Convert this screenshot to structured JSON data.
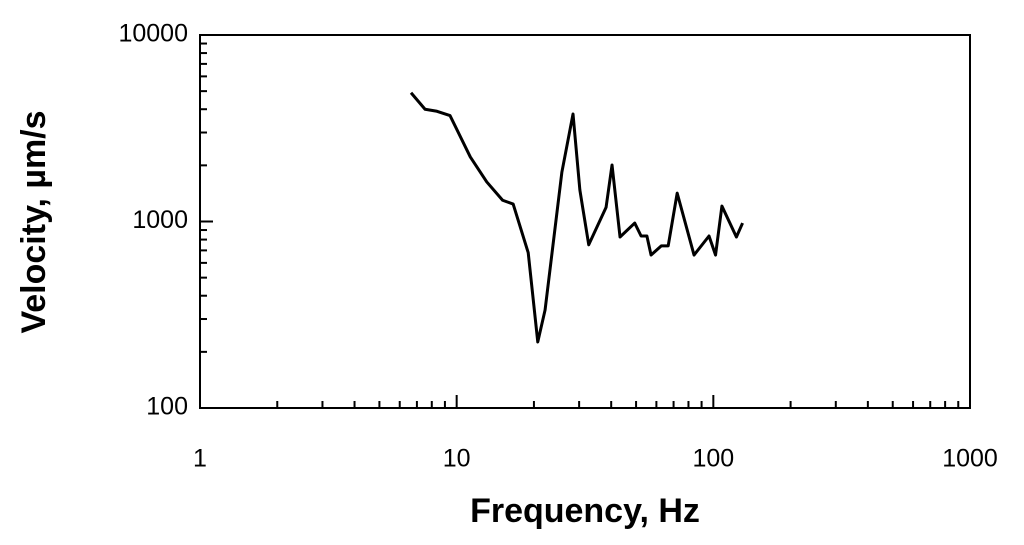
{
  "chart_data": {
    "type": "line",
    "xlabel": "Frequency, Hz",
    "ylabel": "Velocity,  µm/s",
    "xscale": "log",
    "yscale": "log",
    "xlim": [
      1,
      1000
    ],
    "ylim": [
      100,
      10000
    ],
    "xticks": [
      1,
      10,
      100,
      1000
    ],
    "yticks": [
      100,
      1000,
      10000
    ],
    "grid": false,
    "series": [
      {
        "name": null,
        "color": "#000000",
        "x": [
          6.64,
          7.53,
          8.38,
          9.42,
          11.3,
          13.1,
          15.1,
          16.6,
          19.0,
          20.7,
          22.1,
          25.7,
          28.4,
          30.2,
          31.0,
          32.7,
          38.2,
          40.3,
          43.3,
          49.4,
          52.3,
          55.1,
          57.2,
          62.7,
          66.7,
          72.3,
          84.1,
          96.2,
          102,
          108,
          123,
          130
        ],
        "values": [
          4900,
          4000,
          3900,
          3700,
          2220,
          1630,
          1300,
          1240,
          680,
          226,
          335,
          1840,
          3770,
          1475,
          1180,
          750,
          1190,
          2010,
          826,
          981,
          836,
          836,
          661,
          740,
          740,
          1420,
          661,
          836,
          661,
          1210,
          826,
          981
        ]
      }
    ]
  }
}
